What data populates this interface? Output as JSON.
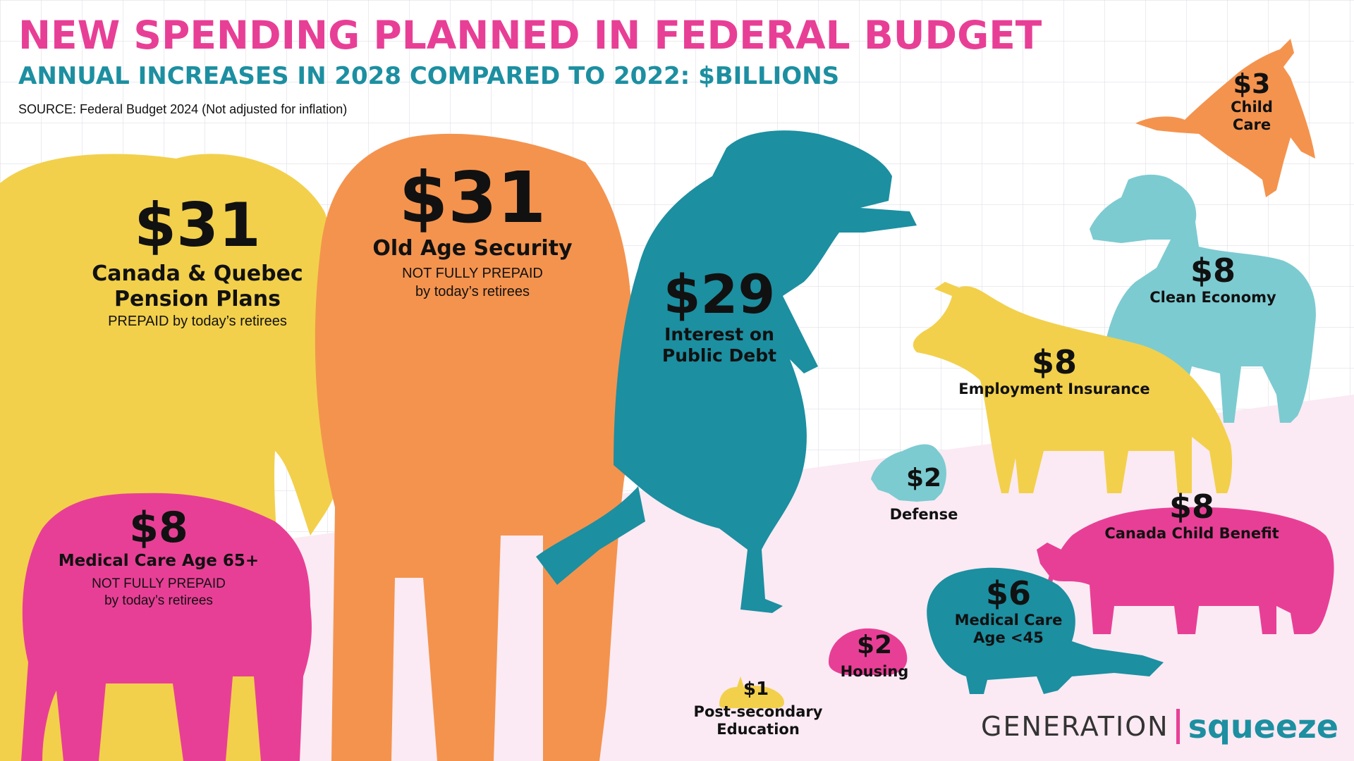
{
  "title": "NEW SPENDING PLANNED IN FEDERAL BUDGET",
  "subtitle": "ANNUAL INCREASES IN 2028 COMPARED TO 2022: $BILLIONS",
  "source": "SOURCE: Federal Budget 2024 (Not adjusted for inflation)",
  "brand": {
    "part1": "GENERATION",
    "part2": "squeeze"
  },
  "colors": {
    "pink": "#e83f96",
    "teal": "#1c8fa1",
    "yellow": "#f2d04b",
    "orange": "#f4934e",
    "light_teal": "#7ccbd1",
    "floor": "#fbeaf3"
  },
  "chart_data": {
    "type": "pictorial",
    "unit": "$ billions",
    "items": [
      {
        "key": "cpp",
        "value_label": "$31",
        "value": 31,
        "category": "Canada & Quebec\nPension Plans",
        "note": "PREPAID by today’s retirees",
        "animal": "elephant",
        "color": "#f2d04b"
      },
      {
        "key": "oas",
        "value_label": "$31",
        "value": 31,
        "category": "Old Age Security",
        "note": "NOT FULLY PREPAID\nby today’s retirees",
        "animal": "elephant",
        "color": "#f4934e"
      },
      {
        "key": "debt",
        "value_label": "$29",
        "value": 29,
        "category": "Interest on\nPublic Debt",
        "note": "",
        "animal": "t-rex",
        "color": "#1c8fa1"
      },
      {
        "key": "med65",
        "value_label": "$8",
        "value": 8,
        "category": "Medical Care Age 65+",
        "note": "NOT FULLY PREPAID\nby today’s retirees",
        "animal": "baby-elephant",
        "color": "#e83f96"
      },
      {
        "key": "clean",
        "value_label": "$8",
        "value": 8,
        "category": "Clean Economy",
        "note": "",
        "animal": "ram",
        "color": "#7ccbd1"
      },
      {
        "key": "ei",
        "value_label": "$8",
        "value": 8,
        "category": "Employment Insurance",
        "note": "",
        "animal": "wolf",
        "color": "#f2d04b"
      },
      {
        "key": "ccb",
        "value_label": "$8",
        "value": 8,
        "category": "Canada Child Benefit",
        "note": "",
        "animal": "bear",
        "color": "#e83f96"
      },
      {
        "key": "med45",
        "value_label": "$6",
        "value": 6,
        "category": "Medical Care\nAge <45",
        "note": "",
        "animal": "beaver",
        "color": "#1c8fa1"
      },
      {
        "key": "childcare",
        "value_label": "$3",
        "value": 3,
        "category": "Child\nCare",
        "note": "",
        "animal": "goose",
        "color": "#f4934e"
      },
      {
        "key": "defense",
        "value_label": "$2",
        "value": 2,
        "category": "Defense",
        "note": "",
        "animal": "squirrel",
        "color": "#7ccbd1"
      },
      {
        "key": "housing",
        "value_label": "$2",
        "value": 2,
        "category": "Housing",
        "note": "",
        "animal": "hedgehog",
        "color": "#e83f96"
      },
      {
        "key": "postsec",
        "value_label": "$1",
        "value": 1,
        "category": "Post-secondary\nEducation",
        "note": "",
        "animal": "snail",
        "color": "#f2d04b"
      }
    ]
  }
}
